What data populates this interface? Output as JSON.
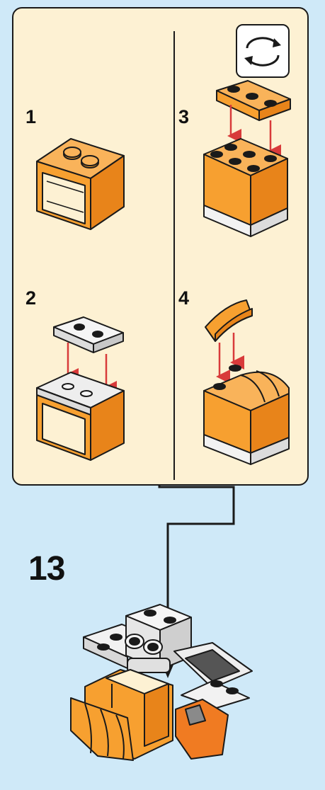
{
  "main_step": "13",
  "sub_steps": [
    {
      "label": "1"
    },
    {
      "label": "2"
    },
    {
      "label": "3"
    },
    {
      "label": "4"
    }
  ],
  "icons": {
    "rotate": "rotate-arrows-icon"
  },
  "colors": {
    "background": "#cfe9f8",
    "panel": "#fdf1d3",
    "orange": "#f7a030",
    "orange_dark": "#e8841a",
    "white_brick": "#ececec",
    "arrow_red": "#d83a3a",
    "outline": "#1a1a1a"
  }
}
